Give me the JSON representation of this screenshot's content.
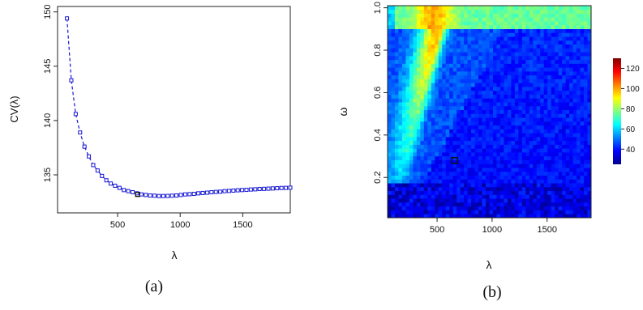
{
  "chart_data": [
    {
      "type": "scatter",
      "panel_label": "(a)",
      "xlabel": "λ",
      "ylabel": "CV(λ)",
      "xlim": [
        20,
        1880
      ],
      "ylim": [
        131.5,
        150.5
      ],
      "xticks": [
        500,
        1000,
        1500
      ],
      "yticks": [
        135,
        140,
        145,
        150
      ],
      "marker_color": "#1515d6",
      "highlight_color": "#111111",
      "line_style": "dashed",
      "highlight_point": {
        "x": 660,
        "y": 133.2
      },
      "x": [
        95,
        130,
        165,
        200,
        235,
        270,
        305,
        340,
        375,
        410,
        445,
        480,
        515,
        550,
        585,
        620,
        655,
        690,
        725,
        760,
        795,
        830,
        865,
        900,
        935,
        970,
        1005,
        1040,
        1075,
        1110,
        1145,
        1180,
        1215,
        1250,
        1285,
        1320,
        1355,
        1390,
        1425,
        1460,
        1495,
        1530,
        1565,
        1600,
        1635,
        1670,
        1705,
        1740,
        1775,
        1810,
        1845,
        1880
      ],
      "y": [
        149.4,
        143.7,
        140.6,
        138.9,
        137.6,
        136.7,
        135.9,
        135.4,
        134.9,
        134.5,
        134.2,
        134.0,
        133.8,
        133.6,
        133.5,
        133.4,
        133.3,
        133.2,
        133.15,
        133.1,
        133.08,
        133.05,
        133.05,
        133.06,
        133.08,
        133.1,
        133.15,
        133.2,
        133.22,
        133.25,
        133.3,
        133.33,
        133.36,
        133.4,
        133.43,
        133.45,
        133.5,
        133.52,
        133.55,
        133.58,
        133.6,
        133.62,
        133.65,
        133.67,
        133.7,
        133.71,
        133.73,
        133.75,
        133.77,
        133.79,
        133.8,
        133.82
      ]
    },
    {
      "type": "heatmap",
      "panel_label": "(b)",
      "xlabel": "λ",
      "ylabel": "ω",
      "xlim": [
        50,
        1900
      ],
      "ylim": [
        0.01,
        1.01
      ],
      "xticks": [
        500,
        1000,
        1500
      ],
      "yticks": [
        0.2,
        0.4,
        0.6,
        0.8,
        1.0
      ],
      "colorbar_ticks": [
        40,
        60,
        80,
        100,
        120
      ],
      "colorbar_range": [
        25,
        130
      ],
      "highlight_point": {
        "x": 660,
        "y": 0.28
      }
    }
  ]
}
